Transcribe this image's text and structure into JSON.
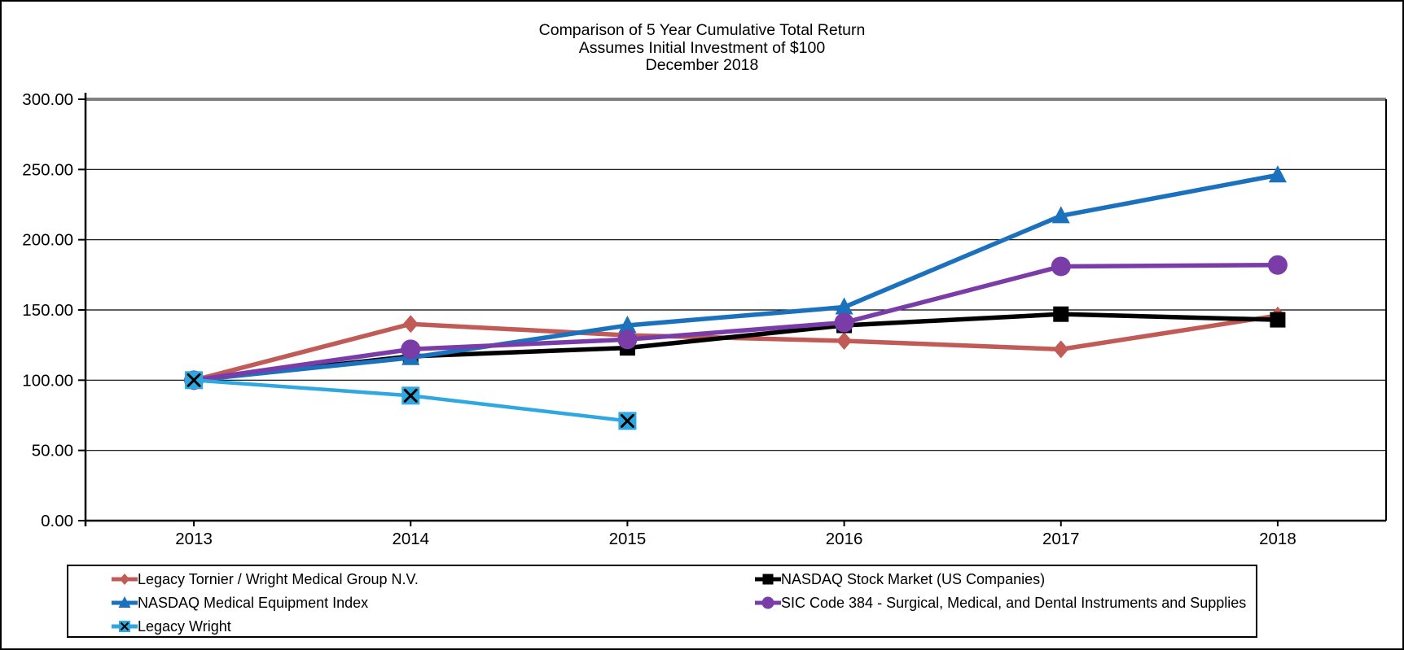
{
  "chart_data": {
    "type": "line",
    "title": "Comparison of 5 Year Cumulative Total Return",
    "subtitle": "Assumes Initial Investment of $100",
    "date_label": "December 2018",
    "categories": [
      "2013",
      "2014",
      "2015",
      "2016",
      "2017",
      "2018"
    ],
    "xlabel": "",
    "ylabel": "",
    "ylim": [
      0,
      300
    ],
    "y_ticks": [
      300,
      250,
      200,
      150,
      100,
      50,
      0
    ],
    "y_tick_labels": [
      "300.00",
      "250.00",
      "200.00",
      "150.00",
      "100.00",
      "50.00",
      "0.00"
    ],
    "grid": true,
    "legend_position": "bottom",
    "series": [
      {
        "name": "Legacy Tornier / Wright Medical Group N.V.",
        "color": "#C05B57",
        "marker": "diamond",
        "values": [
          100,
          140,
          132,
          128,
          122,
          146
        ]
      },
      {
        "name": "NASDAQ Stock Market (US Companies)",
        "color": "#000000",
        "marker": "square",
        "values": [
          100,
          117,
          123,
          139,
          147,
          143
        ]
      },
      {
        "name": "NASDAQ Medical Equipment Index",
        "color": "#1B71BC",
        "marker": "triangle",
        "values": [
          100,
          116,
          139,
          152,
          217,
          246
        ]
      },
      {
        "name": "SIC Code 384 - Surgical, Medical, and Dental Instruments and Supplies",
        "color": "#7A3DA8",
        "marker": "circle",
        "values": [
          100,
          122,
          129,
          141,
          181,
          182
        ]
      },
      {
        "name": "Legacy Wright",
        "color": "#2FA8E1",
        "marker": "x-square",
        "values": [
          100,
          89,
          71
        ]
      }
    ],
    "legend_columns": [
      [
        0,
        2,
        4
      ],
      [
        1,
        3
      ]
    ],
    "colors": {
      "axis": "#000000",
      "top_border": "#808080",
      "background": "#FFFFFF"
    }
  }
}
